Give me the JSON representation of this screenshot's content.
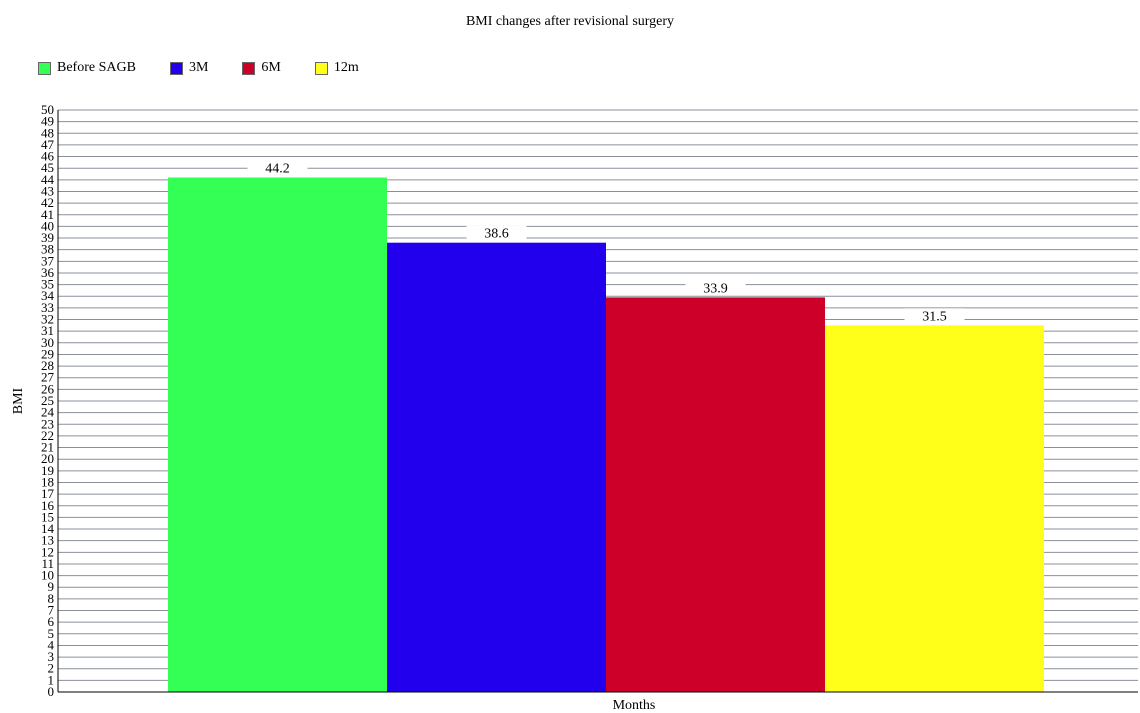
{
  "chart_data": {
    "type": "bar",
    "title": "BMI changes after revisional surgery",
    "xlabel": "Months",
    "ylabel": "BMI",
    "ylim": [
      0,
      50
    ],
    "ytick_step": 1,
    "grid": true,
    "legend_position": "top-left",
    "categories": [
      "Before SAGB",
      "3M",
      "6M",
      "12m"
    ],
    "values": [
      44.2,
      38.6,
      33.9,
      31.5
    ],
    "colors": [
      "#33ff55",
      "#2200ee",
      "#cc0029",
      "#ffff1a"
    ]
  }
}
